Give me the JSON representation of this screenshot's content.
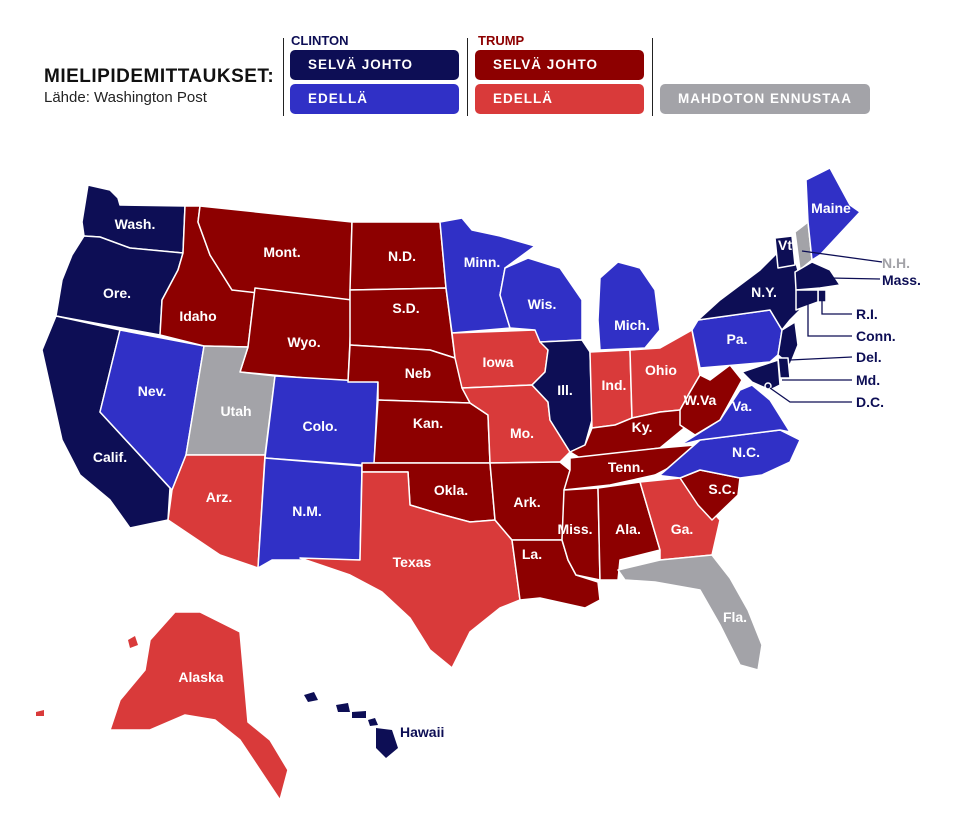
{
  "header": {
    "title": "MIELIPIDEMITTAUKSET:",
    "source": "Lähde: Washington Post"
  },
  "legend": {
    "clinton": {
      "name": "CLINTON",
      "strong_label": "SELVÄ JOHTO",
      "lean_label": "EDELLÄ"
    },
    "trump": {
      "name": "TRUMP",
      "strong_label": "SELVÄ JOHTO",
      "lean_label": "EDELLÄ"
    },
    "tossup_label": "MAHDOTON ENNUSTAA"
  },
  "colors": {
    "clinton_strong": "#0d0e55",
    "clinton_lean": "#3030c6",
    "trump_strong": "#8d0000",
    "trump_lean": "#d93a3a",
    "tossup": "#a3a3a8",
    "clinton_title": "#0d0e55",
    "trump_title": "#8d0000"
  },
  "states": {
    "wa": "Wash.",
    "or": "Ore.",
    "ca": "Calif.",
    "nv": "Nev.",
    "id": "Idaho",
    "mt": "Mont.",
    "wy": "Wyo.",
    "ut": "Utah",
    "az": "Arz.",
    "co": "Colo.",
    "nm": "N.M.",
    "nd": "N.D.",
    "sd": "S.D.",
    "ne": "Neb",
    "ks": "Kan.",
    "ok": "Okla.",
    "tx": "Texas",
    "mn": "Minn.",
    "ia": "Iowa",
    "mo": "Mo.",
    "ar": "Ark.",
    "la": "La.",
    "wi": "Wis.",
    "il": "Ill.",
    "mi": "Mich.",
    "in": "Ind.",
    "oh": "Ohio",
    "ky": "Ky.",
    "tn": "Tenn.",
    "ms": "Miss.",
    "al": "Ala.",
    "ga": "Ga.",
    "fl": "Fla.",
    "sc": "S.C.",
    "nc": "N.C.",
    "va": "Va.",
    "wv": "W.Va",
    "pa": "Pa.",
    "ny": "N.Y.",
    "vt": "Vt.",
    "nh": "N.H.",
    "me": "Maine",
    "ma": "Mass.",
    "ri": "R.I.",
    "ct": "Conn.",
    "de": "Del.",
    "md": "Md.",
    "dc": "D.C.",
    "ak": "Alaska",
    "hi": "Hawaii"
  },
  "ratings": {
    "clinton_strong": [
      "Wash.",
      "Ore.",
      "Calif.",
      "Ill.",
      "N.Y.",
      "Vt.",
      "Mass.",
      "R.I.",
      "Conn.",
      "N.J.",
      "Del.",
      "Md.",
      "D.C.",
      "Hawaii"
    ],
    "clinton_lean": [
      "Nev.",
      "Colo.",
      "N.M.",
      "Minn.",
      "Wis.",
      "Mich.",
      "Pa.",
      "Va.",
      "N.C.",
      "Maine"
    ],
    "trump_strong": [
      "Idaho",
      "Mont.",
      "Wyo.",
      "N.D.",
      "S.D.",
      "Neb",
      "Kan.",
      "Okla.",
      "Ark.",
      "La.",
      "Miss.",
      "Ala.",
      "Tenn.",
      "Ky.",
      "W.Va",
      "S.C."
    ],
    "trump_lean": [
      "Arz.",
      "Texas",
      "Iowa",
      "Mo.",
      "Ind.",
      "Ohio",
      "Ga.",
      "Alaska"
    ],
    "tossup": [
      "Utah",
      "Fla.",
      "N.H."
    ]
  }
}
